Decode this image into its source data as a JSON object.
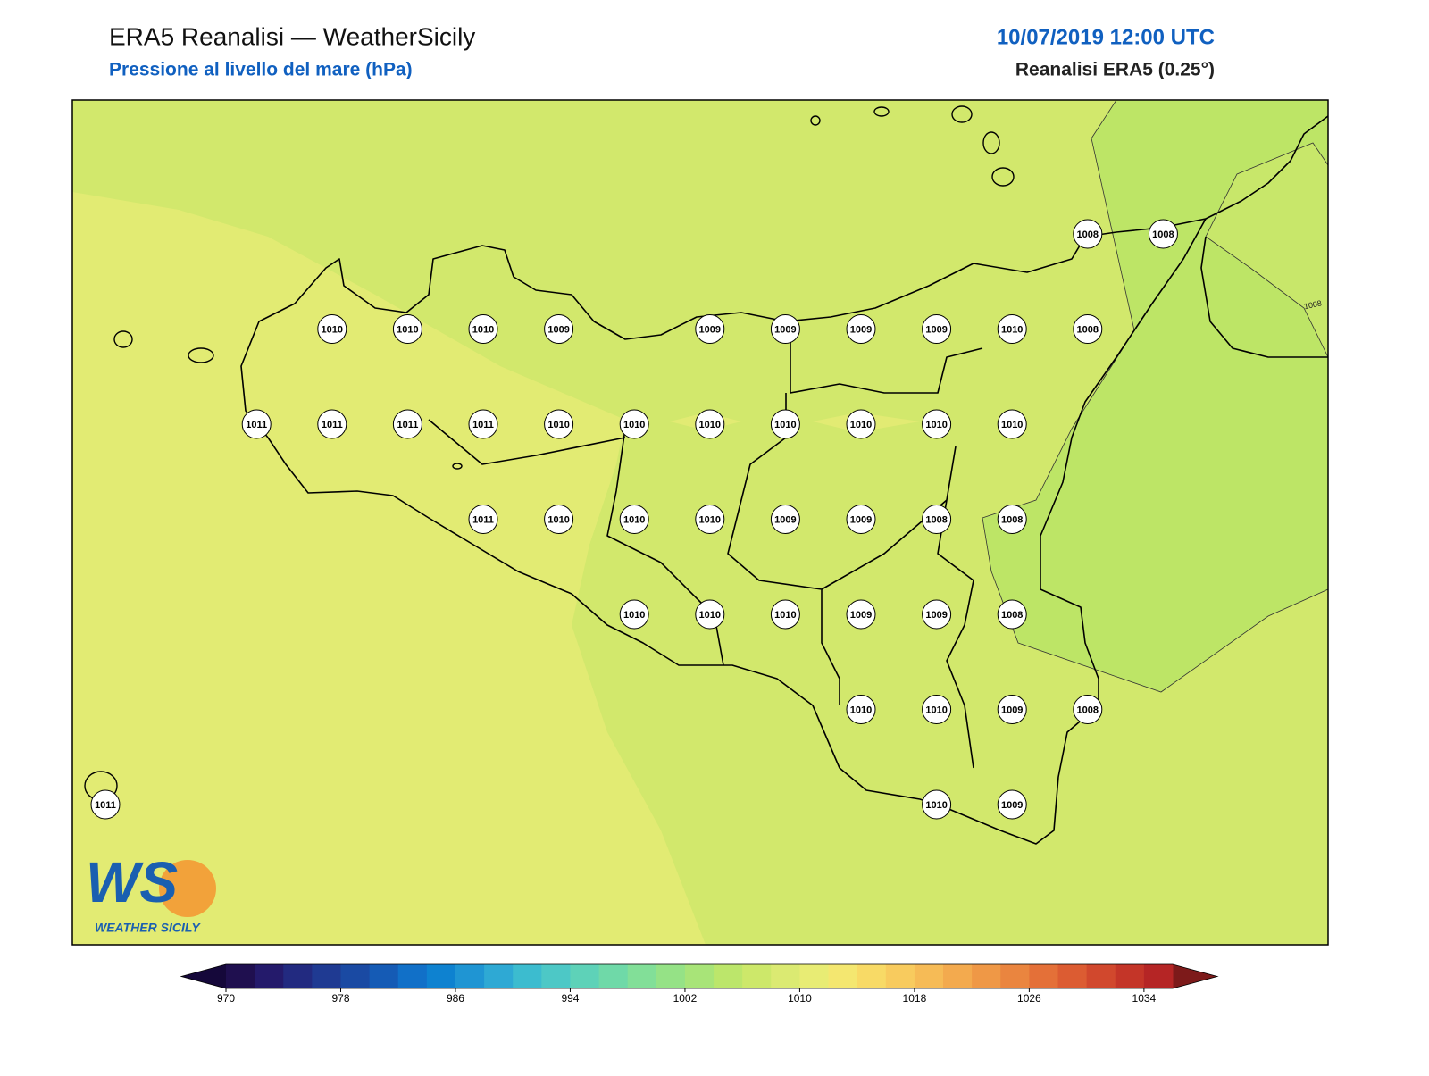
{
  "header": {
    "title": "ERA5 Reanalisi — WeatherSicily",
    "subtitle": "Pressione al livello del mare (hPa)",
    "datetime": "10/07/2019 12:00 UTC",
    "source": "Reanalisi ERA5 (0.25°)"
  },
  "stations": {
    "rows": [
      [
        null,
        null,
        null,
        null,
        null,
        null,
        null,
        null,
        null,
        null,
        null,
        null,
        null,
        1008,
        1008
      ],
      [
        null,
        null,
        null,
        1010,
        1010,
        1010,
        1009,
        null,
        1009,
        1009,
        1009,
        1009,
        1010,
        1008,
        null
      ],
      [
        null,
        null,
        1011,
        1011,
        1011,
        1011,
        1010,
        1010,
        1010,
        1010,
        1010,
        1010,
        1010,
        null,
        null
      ],
      [
        null,
        null,
        null,
        null,
        null,
        1011,
        1010,
        1010,
        1010,
        1009,
        1009,
        1008,
        1008,
        null,
        null
      ],
      [
        null,
        null,
        null,
        null,
        null,
        null,
        null,
        1010,
        1010,
        1010,
        1009,
        1009,
        1008,
        null,
        null
      ],
      [
        null,
        null,
        null,
        null,
        null,
        null,
        null,
        null,
        null,
        null,
        1010,
        1010,
        1009,
        1008,
        null
      ],
      [
        1011,
        null,
        null,
        null,
        null,
        null,
        null,
        null,
        null,
        null,
        null,
        1010,
        1009,
        null,
        null
      ]
    ]
  },
  "contour_label": 1008,
  "logo": {
    "mark": "WS",
    "name": "WEATHER SICILY"
  },
  "colorbar": {
    "range": [
      970,
      1036
    ],
    "ticks": [
      970,
      978,
      986,
      994,
      1002,
      1010,
      1018,
      1026,
      1034
    ],
    "colors": [
      "#1f0f4f",
      "#241a6b",
      "#222a80",
      "#1f3a92",
      "#1a4aa3",
      "#155bb5",
      "#1170c8",
      "#0e82d0",
      "#1f95d3",
      "#2ea9d4",
      "#3cbccf",
      "#4dc8c6",
      "#5ed2b8",
      "#6fd9a8",
      "#82df98",
      "#95e286",
      "#a8e478",
      "#bce66b",
      "#cde86a",
      "#dbea72",
      "#e8ec74",
      "#f4e770",
      "#f8da66",
      "#f8cb5e",
      "#f6bb56",
      "#f3aa4e",
      "#ef9846",
      "#ea853f",
      "#e47038",
      "#dc5c32",
      "#d1482d",
      "#c43528",
      "#b52525"
    ],
    "under_color": "#15083a",
    "over_color": "#7d1a1a"
  }
}
